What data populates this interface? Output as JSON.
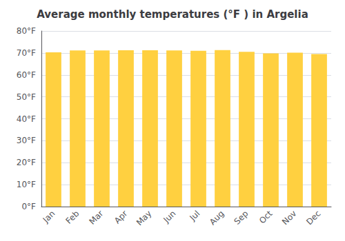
{
  "chart_data": {
    "type": "bar",
    "title": "Average monthly temperatures (°F ) in Argelia",
    "categories": [
      "Jan",
      "Feb",
      "Mar",
      "Apr",
      "May",
      "Jun",
      "Jul",
      "Aug",
      "Sep",
      "Oct",
      "Nov",
      "Dec"
    ],
    "values": [
      70.3,
      71.1,
      71.1,
      71.2,
      71.2,
      71.1,
      71.0,
      71.3,
      70.5,
      69.8,
      70.1,
      69.5
    ],
    "color": "#FFD040",
    "ylim": [
      0,
      80
    ],
    "yticks": [
      {
        "value": 0,
        "label": "0°F"
      },
      {
        "value": 10,
        "label": "10°F"
      },
      {
        "value": 20,
        "label": "20°F"
      },
      {
        "value": 30,
        "label": "30°F"
      },
      {
        "value": 40,
        "label": "40°F"
      },
      {
        "value": 50,
        "label": "50°F"
      },
      {
        "value": 60,
        "label": "60°F"
      },
      {
        "value": 70,
        "label": "70°F"
      },
      {
        "value": 80,
        "label": "80°F"
      }
    ],
    "grid": true
  }
}
